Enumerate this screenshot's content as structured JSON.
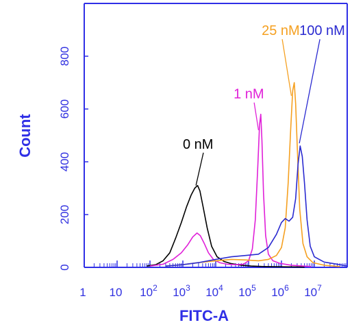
{
  "chart_data": {
    "type": "line",
    "title": "",
    "xlabel": "FITC-A",
    "ylabel": "Count",
    "x_scale": "log",
    "xlim": [
      1,
      100000000
    ],
    "ylim": [
      0,
      1000
    ],
    "x_ticks": [
      {
        "value": 1,
        "base": "1",
        "exp": ""
      },
      {
        "value": 10,
        "base": "10",
        "exp": ""
      },
      {
        "value": 100,
        "base": "10",
        "exp": "2"
      },
      {
        "value": 1000,
        "base": "10",
        "exp": "3"
      },
      {
        "value": 10000,
        "base": "10",
        "exp": "4"
      },
      {
        "value": 100000,
        "base": "10",
        "exp": "5"
      },
      {
        "value": 1000000,
        "base": "10",
        "exp": "6"
      },
      {
        "value": 10000000,
        "base": "10",
        "exp": "7"
      }
    ],
    "y_ticks": [
      {
        "value": 0,
        "label": "0"
      },
      {
        "value": 200,
        "label": "200"
      },
      {
        "value": 400,
        "label": "400"
      },
      {
        "value": 600,
        "label": "600"
      },
      {
        "value": 800,
        "label": "800"
      }
    ],
    "grid": false,
    "legend": "none",
    "series": [
      {
        "name": "0 nM",
        "color": "#000000",
        "points": [
          [
            80,
            5
          ],
          [
            150,
            10
          ],
          [
            250,
            25
          ],
          [
            400,
            55
          ],
          [
            600,
            110
          ],
          [
            900,
            170
          ],
          [
            1300,
            230
          ],
          [
            1800,
            275
          ],
          [
            2300,
            300
          ],
          [
            2800,
            310
          ],
          [
            3300,
            290
          ],
          [
            4200,
            225
          ],
          [
            5500,
            150
          ],
          [
            7500,
            80
          ],
          [
            11000,
            40
          ],
          [
            18000,
            22
          ],
          [
            30000,
            14
          ],
          [
            60000,
            8
          ],
          [
            120000,
            5
          ],
          [
            300000,
            3
          ],
          [
            1000000,
            2
          ],
          [
            5000000,
            1
          ]
        ]
      },
      {
        "name": "1 nM",
        "color": "#e020d8",
        "points": [
          [
            100,
            5
          ],
          [
            250,
            12
          ],
          [
            500,
            30
          ],
          [
            900,
            55
          ],
          [
            1400,
            85
          ],
          [
            2000,
            115
          ],
          [
            2700,
            130
          ],
          [
            3400,
            120
          ],
          [
            4500,
            90
          ],
          [
            6000,
            55
          ],
          [
            8500,
            30
          ],
          [
            13000,
            18
          ],
          [
            22000,
            12
          ],
          [
            40000,
            10
          ],
          [
            70000,
            12
          ],
          [
            100000,
            25
          ],
          [
            130000,
            70
          ],
          [
            160000,
            180
          ],
          [
            190000,
            380
          ],
          [
            215000,
            540
          ],
          [
            235000,
            580
          ],
          [
            255000,
            480
          ],
          [
            285000,
            280
          ],
          [
            330000,
            120
          ],
          [
            400000,
            50
          ],
          [
            550000,
            25
          ],
          [
            900000,
            15
          ],
          [
            2000000,
            8
          ],
          [
            8000000,
            3
          ]
        ]
      },
      {
        "name": "25 nM",
        "color": "#f5a020",
        "points": [
          [
            300,
            5
          ],
          [
            1000,
            10
          ],
          [
            3000,
            18
          ],
          [
            10000,
            25
          ],
          [
            30000,
            30
          ],
          [
            80000,
            28
          ],
          [
            200000,
            25
          ],
          [
            400000,
            30
          ],
          [
            700000,
            45
          ],
          [
            1000000,
            75
          ],
          [
            1300000,
            150
          ],
          [
            1600000,
            320
          ],
          [
            1900000,
            520
          ],
          [
            2200000,
            670
          ],
          [
            2450000,
            700
          ],
          [
            2700000,
            620
          ],
          [
            3100000,
            420
          ],
          [
            3600000,
            220
          ],
          [
            4500000,
            90
          ],
          [
            6000000,
            40
          ],
          [
            9000000,
            18
          ],
          [
            20000000,
            8
          ],
          [
            60000000,
            3
          ]
        ]
      },
      {
        "name": "100 nM",
        "color": "#2a2ad0",
        "points": [
          [
            300,
            5
          ],
          [
            1000,
            10
          ],
          [
            3000,
            18
          ],
          [
            10000,
            30
          ],
          [
            30000,
            40
          ],
          [
            80000,
            45
          ],
          [
            200000,
            50
          ],
          [
            400000,
            75
          ],
          [
            700000,
            125
          ],
          [
            1000000,
            170
          ],
          [
            1300000,
            185
          ],
          [
            1700000,
            175
          ],
          [
            2200000,
            190
          ],
          [
            2700000,
            260
          ],
          [
            3200000,
            390
          ],
          [
            3700000,
            460
          ],
          [
            4300000,
            420
          ],
          [
            5000000,
            320
          ],
          [
            6000000,
            180
          ],
          [
            7500000,
            80
          ],
          [
            10000000,
            40
          ],
          [
            20000000,
            20
          ],
          [
            60000000,
            10
          ],
          [
            100000000,
            5
          ]
        ]
      }
    ],
    "annotations": [
      {
        "text": "0 nM",
        "color": "#000000",
        "x": 1000,
        "y": 450,
        "arrow_to": [
          2500,
          310
        ]
      },
      {
        "text": "1 nM",
        "color": "#e020d8",
        "x": 35000,
        "y": 640,
        "arrow_to": [
          200000,
          520
        ]
      },
      {
        "text": "25 nM",
        "color": "#f5a020",
        "x": 250000,
        "y": 880,
        "arrow_to": [
          2000000,
          650
        ]
      },
      {
        "text": "100 nM",
        "color": "#2a2ad0",
        "x": 3500000,
        "y": 880,
        "arrow_to": [
          3500000,
          470
        ]
      }
    ]
  }
}
